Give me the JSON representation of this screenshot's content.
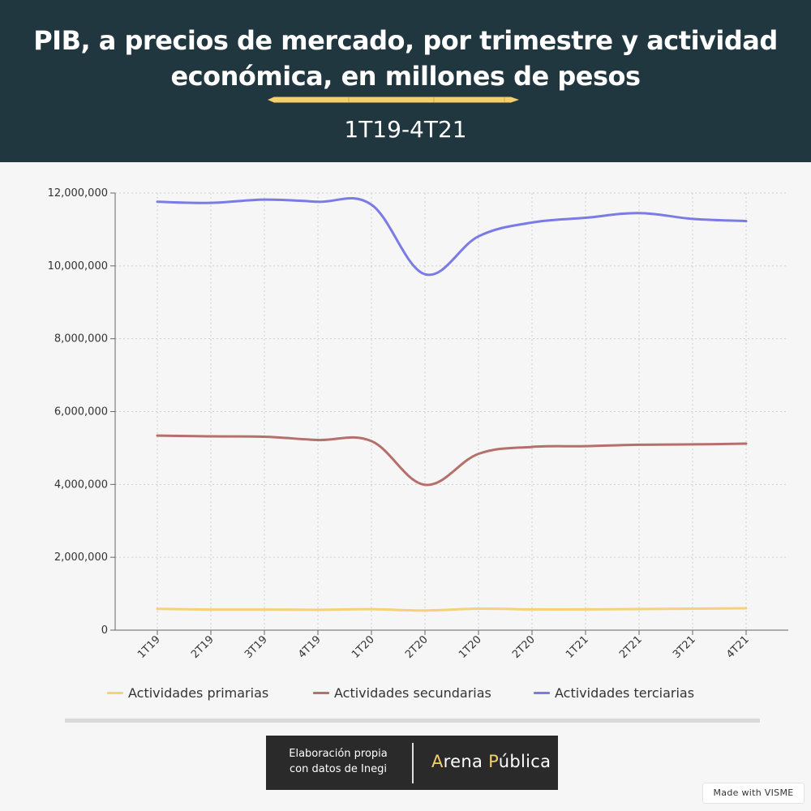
{
  "header": {
    "title": "PIB, a precios de mercado, por trimestre y actividad económica, en millones de pesos",
    "subtitle": "1T19-4T21"
  },
  "colors": {
    "header_bg": "#213740",
    "accent": "#f4cf6b",
    "primarias": "#f6d07a",
    "secundarias": "#b5706b",
    "terciarias": "#7b7be6"
  },
  "chart_data": {
    "type": "line",
    "categories": [
      "1T19",
      "2T19",
      "3T19",
      "4T19",
      "1T20",
      "2T20",
      "1T20",
      "2T20",
      "1T21",
      "2T21",
      "3T21",
      "4T21"
    ],
    "series": [
      {
        "name": "Actividades primarias",
        "values": [
          585000,
          565000,
          565000,
          560000,
          575000,
          540000,
          590000,
          570000,
          570000,
          580000,
          590000,
          600000
        ]
      },
      {
        "name": "Actividades secundarias",
        "values": [
          5340000,
          5320000,
          5310000,
          5220000,
          5190000,
          3990000,
          4840000,
          5030000,
          5050000,
          5090000,
          5100000,
          5120000
        ]
      },
      {
        "name": "Actividades terciarias",
        "values": [
          11760000,
          11730000,
          11820000,
          11760000,
          11680000,
          9770000,
          10810000,
          11190000,
          11320000,
          11450000,
          11290000,
          11230000
        ]
      }
    ],
    "yticks": [
      "0",
      "2,000,000",
      "4,000,000",
      "6,000,000",
      "8,000,000",
      "10,000,000",
      "12,000,000"
    ],
    "ylim": [
      0,
      12000000
    ],
    "grid": true,
    "legend_position": "bottom"
  },
  "credit": {
    "line1": "Elaboración propia",
    "line2": "con datos de Inegi",
    "logo_a": "A",
    "logo_rena": "rena ",
    "logo_p": "P",
    "logo_ublica": "ública"
  },
  "made_with": "Made with VISME"
}
